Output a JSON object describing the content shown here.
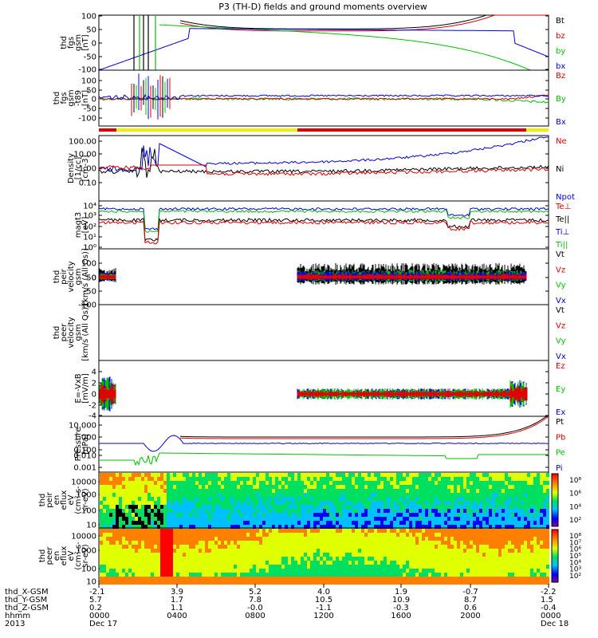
{
  "title": "P3 (TH-D) fields and ground moments overview",
  "colors": {
    "black": "#000000",
    "red": "#e00000",
    "green": "#00c000",
    "blue": "#0000e0",
    "yellow": "#f0f000",
    "flag_red": "#e00000"
  },
  "chart_data": [
    {
      "type": "line",
      "panel": "fgs",
      "ylabel_lines": [
        "thd",
        "fgs",
        "gsm",
        "[nT]"
      ],
      "yticks": [
        "100",
        "50",
        "0",
        "-50",
        "-100"
      ],
      "ylim": [
        -100,
        100
      ],
      "series": [
        {
          "name": "Bt",
          "color": "#000000"
        },
        {
          "name": "bz",
          "color": "#e00000"
        },
        {
          "name": "by",
          "color": "#00c000"
        },
        {
          "name": "bx",
          "color": "#0000e0"
        }
      ]
    },
    {
      "type": "line",
      "panel": "fgs_dtrnd",
      "ylabel_lines": [
        "thd",
        "fgs",
        "gsm",
        "-t89",
        "[nT]"
      ],
      "yticks": [
        "100",
        "50",
        "0",
        "-50",
        "-100"
      ],
      "ylim": [
        -120,
        120
      ],
      "series": [
        {
          "name": "Bz",
          "color": "#e00000"
        },
        {
          "name": "By",
          "color": "#00c000"
        },
        {
          "name": "Bx",
          "color": "#0000e0"
        }
      ]
    },
    {
      "type": "line",
      "panel": "density",
      "ylabel_lines": [
        "Density",
        "[1/cc]",
        "[cm-3]"
      ],
      "yticks": [
        "100.00",
        "10.00",
        "1.00",
        "0.10"
      ],
      "ylim": [
        0.01,
        300
      ],
      "log": true,
      "series": [
        {
          "name": "Ne",
          "color": "#e00000"
        },
        {
          "name": "Ni",
          "color": "#000000"
        },
        {
          "name": "Npot",
          "color": "#0000e0"
        }
      ]
    },
    {
      "type": "line",
      "panel": "temperature",
      "ylabel_lines": [
        "magt3",
        "[eV]"
      ],
      "yticks": [
        "10⁴",
        "10³",
        "10²",
        "10¹",
        "10⁰"
      ],
      "ylim": [
        1,
        30000
      ],
      "log": true,
      "series": [
        {
          "name": "Te⊥",
          "color": "#e00000"
        },
        {
          "name": "Te||",
          "color": "#000000"
        },
        {
          "name": "Ti⊥",
          "color": "#0000e0"
        },
        {
          "name": "Ti||",
          "color": "#00c000"
        }
      ]
    },
    {
      "type": "line",
      "panel": "peir_velocity",
      "ylabel_lines": [
        "thd",
        "peir",
        "velocity",
        "gsm",
        "[km/s (All Qs)]"
      ],
      "yticks": [
        "100",
        "50",
        "0",
        "-50",
        "-100"
      ],
      "ylim": [
        -100,
        100
      ],
      "series": [
        {
          "name": "Vt",
          "color": "#000000"
        },
        {
          "name": "Vz",
          "color": "#e00000"
        },
        {
          "name": "Vy",
          "color": "#00c000"
        },
        {
          "name": "Vx",
          "color": "#0000e0"
        }
      ]
    },
    {
      "type": "line",
      "panel": "peer_velocity",
      "ylabel_lines": [
        "thd",
        "peer",
        "velocity",
        "gsm",
        "[km/s (All Qs)]"
      ],
      "yticks": [],
      "ylim": [
        -100,
        100
      ],
      "series": [
        {
          "name": "Vt",
          "color": "#000000"
        },
        {
          "name": "Vz",
          "color": "#e00000"
        },
        {
          "name": "Vy",
          "color": "#00c000"
        },
        {
          "name": "Vx",
          "color": "#0000e0"
        }
      ]
    },
    {
      "type": "line",
      "panel": "efield",
      "ylabel_lines": [
        "E=-VxB",
        "[mV/m]"
      ],
      "yticks": [
        "4",
        "2",
        "0",
        "-2",
        "-4"
      ],
      "ylim": [
        -4,
        4
      ],
      "series": [
        {
          "name": "Ez",
          "color": "#e00000"
        },
        {
          "name": "Ey",
          "color": "#00c000"
        },
        {
          "name": "Ex",
          "color": "#0000e0"
        }
      ]
    },
    {
      "type": "line",
      "panel": "pressure",
      "ylabel_lines": [
        "Pressure",
        "[nPa]"
      ],
      "yticks": [
        "10.000",
        "1.000",
        "0.100",
        "0.010",
        "0.001"
      ],
      "ylim": [
        0.0005,
        20
      ],
      "log": true,
      "series": [
        {
          "name": "Pt",
          "color": "#000000"
        },
        {
          "name": "Pb",
          "color": "#e00000"
        },
        {
          "name": "Pe",
          "color": "#00c000"
        },
        {
          "name": "Pi",
          "color": "#0000e0"
        }
      ]
    },
    {
      "type": "heatmap",
      "panel": "peir_spec",
      "ylabel_lines": [
        "thd",
        "peir",
        "en",
        "eflux",
        "eV",
        "(cm²-s-",
        "sr-eV)"
      ],
      "yticks": [
        "10000",
        "1000",
        "100",
        "10"
      ],
      "ylim": [
        7,
        25000
      ],
      "log": true,
      "colorbar_ticks": [
        "10⁸",
        "10⁶",
        "10⁴",
        "10²"
      ]
    },
    {
      "type": "heatmap",
      "panel": "peer_spec",
      "ylabel_lines": [
        "thd",
        "peer",
        "en",
        "eflux",
        "eV",
        "(cm²-s-",
        "sr-eV)"
      ],
      "yticks": [
        "10000",
        "1000",
        "100",
        "10"
      ],
      "ylim": [
        7,
        25000
      ],
      "log": true,
      "colorbar_ticks": [
        "10⁸",
        "10⁷",
        "10⁶",
        "10⁵",
        "10⁴",
        "10³",
        "10²"
      ]
    }
  ],
  "xaxis": {
    "row_labels": [
      "thd_X-GSM",
      "thd_Y-GSM",
      "thd_Z-GSM",
      "hhmm",
      "2013"
    ],
    "columns": [
      {
        "x": "-2.1",
        "y": "5.7",
        "z": "0.2",
        "t": "0000",
        "d": "Dec 17"
      },
      {
        "x": "3.9",
        "y": "1.7",
        "z": "1.1",
        "t": "0400",
        "d": ""
      },
      {
        "x": "5.2",
        "y": "7.8",
        "z": "-0.0",
        "t": "0800",
        "d": ""
      },
      {
        "x": "4.0",
        "y": "10.5",
        "z": "-1.1",
        "t": "1200",
        "d": ""
      },
      {
        "x": "1.9",
        "y": "10.9",
        "z": "-0.3",
        "t": "1600",
        "d": ""
      },
      {
        "x": "-0.7",
        "y": "8.7",
        "z": "0.6",
        "t": "2000",
        "d": ""
      },
      {
        "x": "-2.2",
        "y": "1.5",
        "z": "-0.4",
        "t": "0000",
        "d": "Dec 18"
      }
    ]
  }
}
